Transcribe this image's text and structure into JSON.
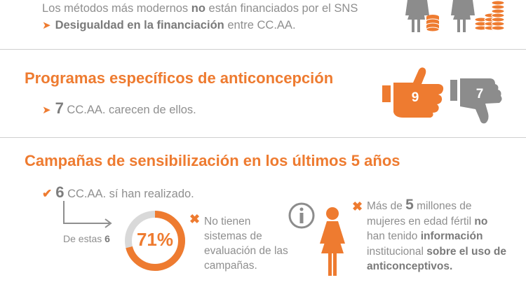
{
  "funding": {
    "line1_prefix": "Los métodos más modernos ",
    "line1_bold": "no",
    "line1_suffix": " están financiados por el SNS",
    "line2_bold": "Desigualdad en la financiación",
    "line2_suffix": " entre CC.AA."
  },
  "programs": {
    "title": "Programas específicos de anticoncepción",
    "number": "7",
    "text": " CC.AA. carecen de ellos.",
    "thumbs_up_value": "9",
    "thumbs_down_value": "7"
  },
  "campaigns": {
    "title": "Campañas de sensibilización en los últimos 5 años",
    "check_number": "6",
    "check_text": " CC.AA. sí han realizado.",
    "de_estas_prefix": "De estas ",
    "de_estas_number": "6",
    "percent_label": "71%",
    "percent_value": 71,
    "no_tienen": "No tienen sistemas de evaluación de las campañas.",
    "women_prefix": "Más de ",
    "women_number": "5",
    "women_mid": " millones de mujeres en edad fértil ",
    "women_no": "no",
    "women_mid2": " han tenido ",
    "women_info": "información",
    "women_mid3": " institucional ",
    "women_uso": "sobre el uso de anticonceptivos."
  },
  "colors": {
    "accent": "#ee7b30",
    "gray": "#8f8f8f",
    "icon_gray": "#8c8c8c"
  },
  "icons": [
    "woman-icon",
    "coin-stack-icon",
    "thumbs-up-icon",
    "thumbs-down-icon",
    "check-icon",
    "x-icon",
    "info-icon"
  ]
}
